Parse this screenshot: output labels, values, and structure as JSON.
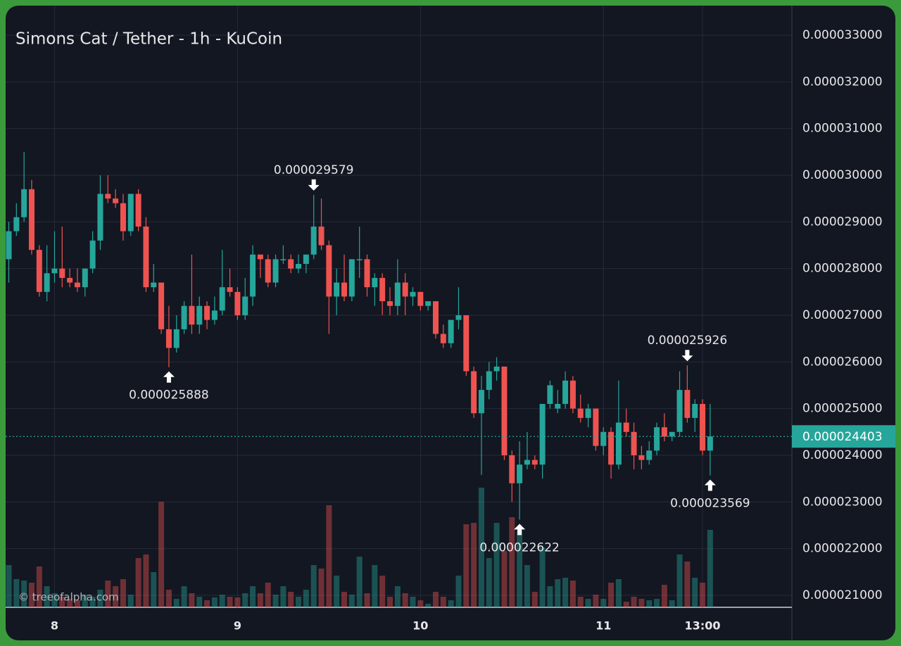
{
  "chart_data": {
    "type": "candlestick",
    "title": "Simons Cat / Tether - 1h - KuCoin",
    "watermark": "© treeofalpha.com",
    "up_color": "#26a69a",
    "down_color": "#ef5350",
    "categories": [
      null,
      null,
      null,
      null,
      null,
      null,
      "8",
      null,
      null,
      null,
      null,
      null,
      null,
      null,
      null,
      null,
      null,
      null,
      null,
      null,
      null,
      null,
      null,
      null,
      null,
      null,
      null,
      null,
      null,
      null,
      "9",
      null,
      null,
      null,
      null,
      null,
      null,
      null,
      null,
      null,
      null,
      null,
      null,
      null,
      null,
      null,
      null,
      null,
      null,
      null,
      null,
      null,
      null,
      null,
      "10",
      null,
      null,
      null,
      null,
      null,
      null,
      null,
      null,
      null,
      null,
      null,
      null,
      null,
      null,
      null,
      null,
      null,
      null,
      null,
      null,
      null,
      null,
      null,
      "11",
      null,
      null,
      null,
      null,
      null,
      null,
      null,
      null,
      null,
      null,
      null,
      null,
      "13:00",
      null
    ],
    "open": [
      2.82e-05,
      2.88e-05,
      2.91e-05,
      2.97e-05,
      2.84e-05,
      2.75e-05,
      2.79e-05,
      2.8e-05,
      2.78e-05,
      2.77e-05,
      2.76e-05,
      2.8e-05,
      2.86e-05,
      2.96e-05,
      2.95e-05,
      2.94e-05,
      2.88e-05,
      2.96e-05,
      2.89e-05,
      2.76e-05,
      2.77e-05,
      2.67e-05,
      2.63e-05,
      2.67e-05,
      2.72e-05,
      2.68e-05,
      2.72e-05,
      2.69e-05,
      2.71e-05,
      2.76e-05,
      2.75e-05,
      2.7e-05,
      2.74e-05,
      2.83e-05,
      2.82e-05,
      2.77e-05,
      2.82e-05,
      2.82e-05,
      2.8e-05,
      2.81e-05,
      2.83e-05,
      2.89e-05,
      2.85e-05,
      2.74e-05,
      2.77e-05,
      2.74e-05,
      2.82e-05,
      2.82e-05,
      2.76e-05,
      2.78e-05,
      2.73e-05,
      2.72e-05,
      2.77e-05,
      2.74e-05,
      2.75e-05,
      2.72e-05,
      2.73e-05,
      2.66e-05,
      2.64e-05,
      2.69e-05,
      2.7e-05,
      2.58e-05,
      2.49e-05,
      2.54e-05,
      2.58e-05,
      2.59e-05,
      2.4e-05,
      2.34e-05,
      2.38e-05,
      2.39e-05,
      2.38e-05,
      2.51e-05,
      2.5e-05,
      2.51e-05,
      2.56e-05,
      2.5e-05,
      2.48e-05,
      2.5e-05,
      2.42e-05,
      2.45e-05,
      2.38e-05,
      2.47e-05,
      2.45e-05,
      2.4e-05,
      2.39e-05,
      2.41e-05,
      2.46e-05,
      2.44e-05,
      2.45e-05,
      2.54e-05,
      2.48e-05,
      2.51e-05,
      2.41e-05
    ],
    "high": [
      2.9e-05,
      2.94e-05,
      3.05e-05,
      2.99e-05,
      2.85e-05,
      2.85e-05,
      2.88e-05,
      2.89e-05,
      2.8e-05,
      2.8e-05,
      2.8e-05,
      2.88e-05,
      3e-05,
      3e-05,
      2.97e-05,
      2.96e-05,
      2.96e-05,
      2.97e-05,
      2.91e-05,
      2.81e-05,
      2.77e-05,
      2.72e-05,
      2.7e-05,
      2.73e-05,
      2.83e-05,
      2.74e-05,
      2.73e-05,
      2.74e-05,
      2.84e-05,
      2.8e-05,
      2.76e-05,
      2.78e-05,
      2.85e-05,
      2.83e-05,
      2.83e-05,
      2.83e-05,
      2.85e-05,
      2.83e-05,
      2.83e-05,
      2.83e-05,
      2.9579e-05,
      2.95e-05,
      2.86e-05,
      2.8e-05,
      2.83e-05,
      2.82e-05,
      2.89e-05,
      2.83e-05,
      2.79e-05,
      2.79e-05,
      2.76e-05,
      2.82e-05,
      2.79e-05,
      2.76e-05,
      2.75e-05,
      2.73e-05,
      2.73e-05,
      2.68e-05,
      2.69e-05,
      2.76e-05,
      2.7e-05,
      2.59e-05,
      2.57e-05,
      2.6e-05,
      2.61e-05,
      2.59e-05,
      2.41e-05,
      2.43e-05,
      2.45e-05,
      2.4e-05,
      2.51e-05,
      2.56e-05,
      2.54e-05,
      2.58e-05,
      2.57e-05,
      2.53e-05,
      2.51e-05,
      2.5e-05,
      2.46e-05,
      2.46e-05,
      2.56e-05,
      2.5e-05,
      2.47e-05,
      2.42e-05,
      2.43e-05,
      2.47e-05,
      2.49e-05,
      2.45e-05,
      2.58e-05,
      2.5926e-05,
      2.52e-05,
      2.52e-05,
      2.51e-05
    ],
    "low": [
      2.77e-05,
      2.87e-05,
      2.9e-05,
      2.83e-05,
      2.74e-05,
      2.73e-05,
      2.77e-05,
      2.76e-05,
      2.76e-05,
      2.75e-05,
      2.74e-05,
      2.79e-05,
      2.84e-05,
      2.94e-05,
      2.93e-05,
      2.86e-05,
      2.87e-05,
      2.88e-05,
      2.75e-05,
      2.75e-05,
      2.66e-05,
      2.5888e-05,
      2.62e-05,
      2.66e-05,
      2.66e-05,
      2.66e-05,
      2.67e-05,
      2.68e-05,
      2.7e-05,
      2.74e-05,
      2.69e-05,
      2.69e-05,
      2.72e-05,
      2.78e-05,
      2.76e-05,
      2.76e-05,
      2.81e-05,
      2.79e-05,
      2.79e-05,
      2.79e-05,
      2.82e-05,
      2.84e-05,
      2.66e-05,
      2.7e-05,
      2.73e-05,
      2.73e-05,
      2.78e-05,
      2.74e-05,
      2.72e-05,
      2.7e-05,
      2.7e-05,
      2.7e-05,
      2.7e-05,
      2.72e-05,
      2.71e-05,
      2.71e-05,
      2.65e-05,
      2.63e-05,
      2.63e-05,
      2.67e-05,
      2.57e-05,
      2.48e-05,
      2.358e-05,
      2.52e-05,
      2.56e-05,
      2.39e-05,
      2.3e-05,
      2.2622e-05,
      2.37e-05,
      2.37e-05,
      2.35e-05,
      2.5e-05,
      2.49e-05,
      2.5e-05,
      2.49e-05,
      2.47e-05,
      2.46e-05,
      2.41e-05,
      2.4e-05,
      2.35e-05,
      2.37e-05,
      2.44e-05,
      2.37e-05,
      2.37e-05,
      2.38e-05,
      2.4e-05,
      2.43e-05,
      2.43e-05,
      2.44e-05,
      2.47e-05,
      2.45e-05,
      2.4e-05,
      2.3569e-05
    ],
    "close": [
      2.88e-05,
      2.91e-05,
      2.97e-05,
      2.84e-05,
      2.75e-05,
      2.79e-05,
      2.8e-05,
      2.78e-05,
      2.77e-05,
      2.76e-05,
      2.8e-05,
      2.86e-05,
      2.96e-05,
      2.95e-05,
      2.94e-05,
      2.88e-05,
      2.96e-05,
      2.89e-05,
      2.76e-05,
      2.77e-05,
      2.67e-05,
      2.63e-05,
      2.67e-05,
      2.72e-05,
      2.68e-05,
      2.72e-05,
      2.69e-05,
      2.71e-05,
      2.76e-05,
      2.75e-05,
      2.7e-05,
      2.74e-05,
      2.83e-05,
      2.82e-05,
      2.77e-05,
      2.82e-05,
      2.82e-05,
      2.8e-05,
      2.81e-05,
      2.83e-05,
      2.89e-05,
      2.85e-05,
      2.74e-05,
      2.77e-05,
      2.74e-05,
      2.82e-05,
      2.82e-05,
      2.76e-05,
      2.78e-05,
      2.73e-05,
      2.72e-05,
      2.77e-05,
      2.74e-05,
      2.75e-05,
      2.72e-05,
      2.73e-05,
      2.66e-05,
      2.64e-05,
      2.69e-05,
      2.7e-05,
      2.58e-05,
      2.49e-05,
      2.54e-05,
      2.58e-05,
      2.59e-05,
      2.4e-05,
      2.34e-05,
      2.38e-05,
      2.39e-05,
      2.38e-05,
      2.51e-05,
      2.55e-05,
      2.51e-05,
      2.56e-05,
      2.5e-05,
      2.48e-05,
      2.5e-05,
      2.42e-05,
      2.45e-05,
      2.38e-05,
      2.47e-05,
      2.45e-05,
      2.4e-05,
      2.39e-05,
      2.41e-05,
      2.46e-05,
      2.44e-05,
      2.45e-05,
      2.54e-05,
      2.48e-05,
      2.51e-05,
      2.41e-05,
      2.4403e-05
    ],
    "volume": [
      60,
      40,
      38,
      35,
      58,
      30,
      20,
      15,
      12,
      10,
      18,
      15,
      25,
      38,
      30,
      40,
      18,
      70,
      75,
      50,
      150,
      25,
      12,
      30,
      20,
      15,
      10,
      14,
      18,
      15,
      14,
      20,
      30,
      20,
      35,
      18,
      30,
      22,
      15,
      25,
      60,
      55,
      145,
      45,
      22,
      18,
      72,
      20,
      60,
      45,
      15,
      30,
      20,
      15,
      10,
      5,
      22,
      15,
      10,
      45,
      118,
      120,
      170,
      70,
      120,
      80,
      128,
      110,
      60,
      22,
      85,
      30,
      40,
      42,
      38,
      15,
      12,
      18,
      12,
      35,
      40,
      8,
      15,
      12,
      10,
      12,
      32,
      10,
      75,
      65,
      42,
      35,
      110
    ],
    "ylim": [
      2.0743e-05,
      3.3633e-05
    ],
    "yticks": [
      {
        "value": 2.1e-05,
        "label": "0.000021000"
      },
      {
        "value": 2.2e-05,
        "label": "0.000022000"
      },
      {
        "value": 2.3e-05,
        "label": "0.000023000"
      },
      {
        "value": 2.4e-05,
        "label": "0.000024000"
      },
      {
        "value": 2.5e-05,
        "label": "0.000025000"
      },
      {
        "value": 2.6e-05,
        "label": "0.000026000"
      },
      {
        "value": 2.7e-05,
        "label": "0.000027000"
      },
      {
        "value": 2.8e-05,
        "label": "0.000028000"
      },
      {
        "value": 2.9e-05,
        "label": "0.000029000"
      },
      {
        "value": 3e-05,
        "label": "0.000030000"
      },
      {
        "value": 3.1e-05,
        "label": "0.000031000"
      },
      {
        "value": 3.2e-05,
        "label": "0.000032000"
      },
      {
        "value": 3.3e-05,
        "label": "0.000033000"
      }
    ],
    "last_price": {
      "value": 2.4403e-05,
      "label": "0.000024403",
      "color": "#26a69a"
    },
    "annotations": [
      {
        "value": 2.9579e-05,
        "label": "0.000029579"
      },
      {
        "value": 2.5888e-05,
        "label": "0.000025888"
      },
      {
        "value": 2.2622e-05,
        "label": "0.000022622"
      },
      {
        "value": 2.5926e-05,
        "label": "0.000025926"
      },
      {
        "value": 2.3569e-05,
        "label": "0.000023569"
      }
    ],
    "grid": true
  }
}
